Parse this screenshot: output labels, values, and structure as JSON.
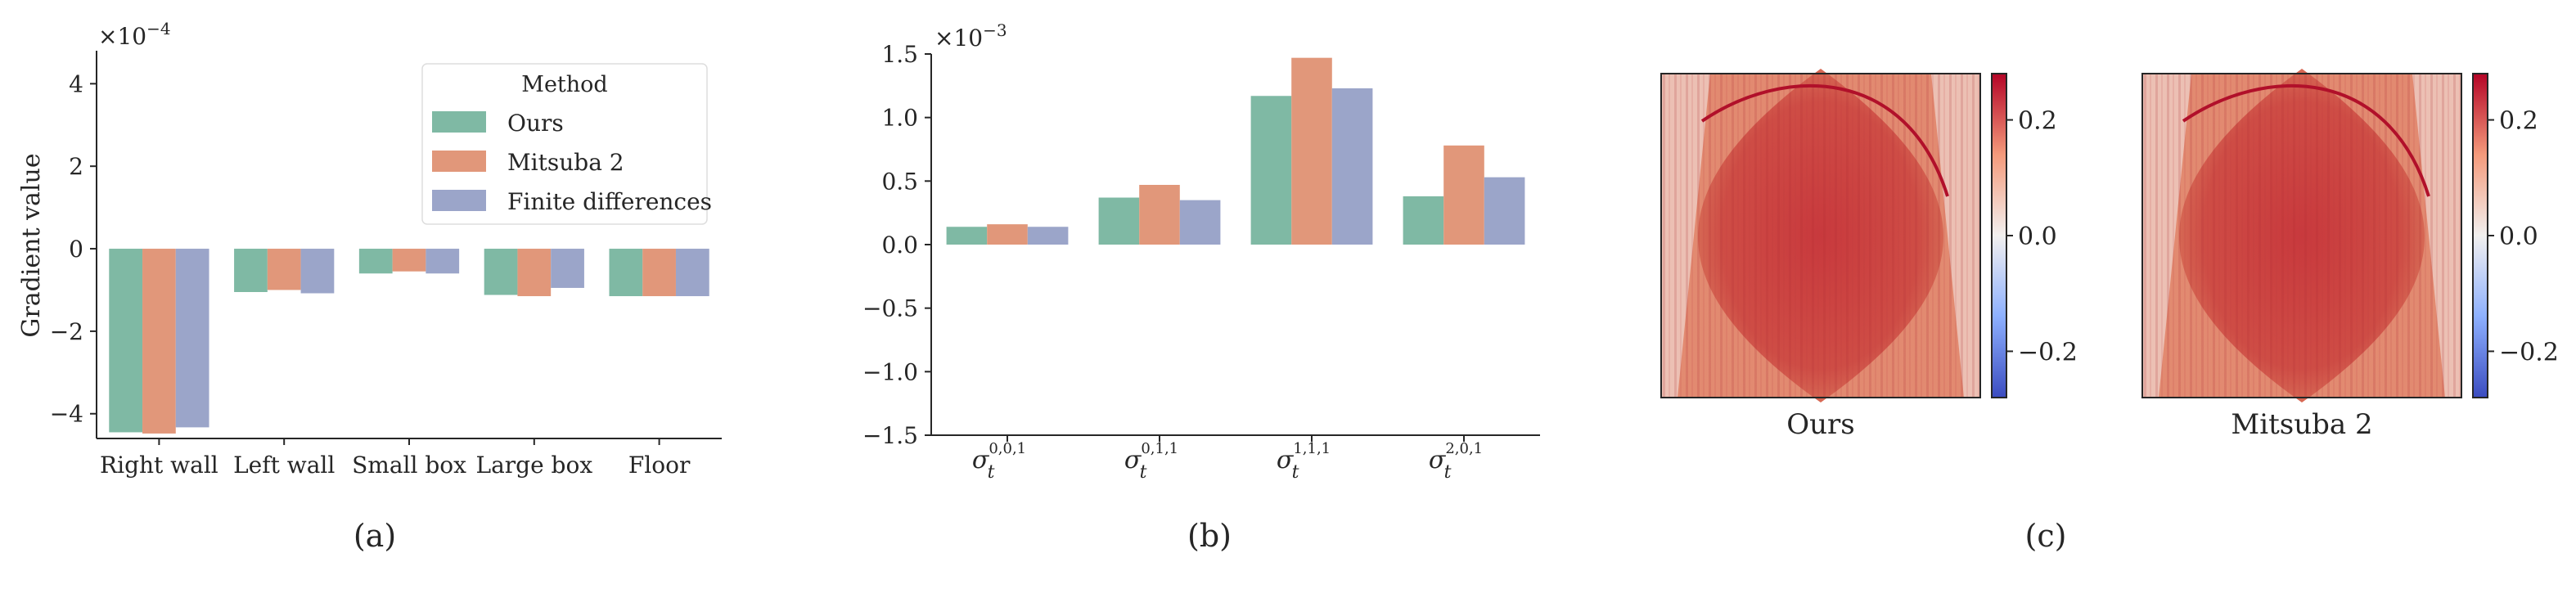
{
  "colors": {
    "ours": "#7fb9a4",
    "mitsuba": "#e1977a",
    "fd": "#9ba5c9",
    "axis": "#262626"
  },
  "chart_data": [
    {
      "type": "bar",
      "panel_label": "(a)",
      "ylabel": "Gradient value",
      "scale_label": "×10",
      "scale_exp": "−4",
      "ylim": [
        -4.6,
        4.8
      ],
      "yticks": [
        -4,
        -2,
        0,
        2,
        4
      ],
      "ytick_labels": [
        "−4",
        "−2",
        "0",
        "2",
        "4"
      ],
      "categories": [
        "Right wall",
        "Left wall",
        "Small box",
        "Large box",
        "Floor"
      ],
      "legend": {
        "title": "Method",
        "placement": "top-right"
      },
      "series": [
        {
          "name": "Ours",
          "color": "#7fb9a4",
          "values": [
            -4.45,
            -1.05,
            -0.6,
            -1.12,
            -1.15
          ]
        },
        {
          "name": "Mitsuba 2",
          "color": "#e1977a",
          "values": [
            -4.48,
            -1.0,
            -0.55,
            -1.15,
            -1.15
          ]
        },
        {
          "name": "Finite differences",
          "color": "#9ba5c9",
          "values": [
            -4.33,
            -1.08,
            -0.6,
            -0.95,
            -1.15
          ]
        }
      ]
    },
    {
      "type": "bar",
      "panel_label": "(b)",
      "scale_label": "×10",
      "scale_exp": "−3",
      "ylim": [
        -1.5,
        1.5
      ],
      "yticks": [
        -1.5,
        -1.0,
        -0.5,
        0.0,
        0.5,
        1.0,
        1.5
      ],
      "ytick_labels": [
        "−1.5",
        "−1.0",
        "−0.5",
        "0.0",
        "0.5",
        "1.0",
        "1.5"
      ],
      "categories": [
        {
          "base": "σ",
          "sub": "t",
          "sup": "0,0,1"
        },
        {
          "base": "σ",
          "sub": "t",
          "sup": "0,1,1"
        },
        {
          "base": "σ",
          "sub": "t",
          "sup": "1,1,1"
        },
        {
          "base": "σ",
          "sub": "t",
          "sup": "2,0,1"
        }
      ],
      "series": [
        {
          "color": "#7fb9a4",
          "values": [
            0.14,
            0.37,
            1.17,
            0.38
          ]
        },
        {
          "color": "#e1977a",
          "values": [
            0.16,
            0.47,
            1.47,
            0.78
          ]
        },
        {
          "color": "#9ba5c9",
          "values": [
            0.14,
            0.35,
            1.23,
            0.53
          ]
        }
      ]
    },
    {
      "type": "heatmap",
      "panel_label": "(c)",
      "colormap": "coolwarm",
      "vmin": -0.28,
      "vmax": 0.28,
      "colorbar_ticks": [
        -0.2,
        0.0,
        0.2
      ],
      "colorbar_tick_labels": [
        "−0.2",
        "0.0",
        "0.2"
      ],
      "images": [
        {
          "caption": "Ours"
        },
        {
          "caption": "Mitsuba 2"
        }
      ]
    }
  ]
}
